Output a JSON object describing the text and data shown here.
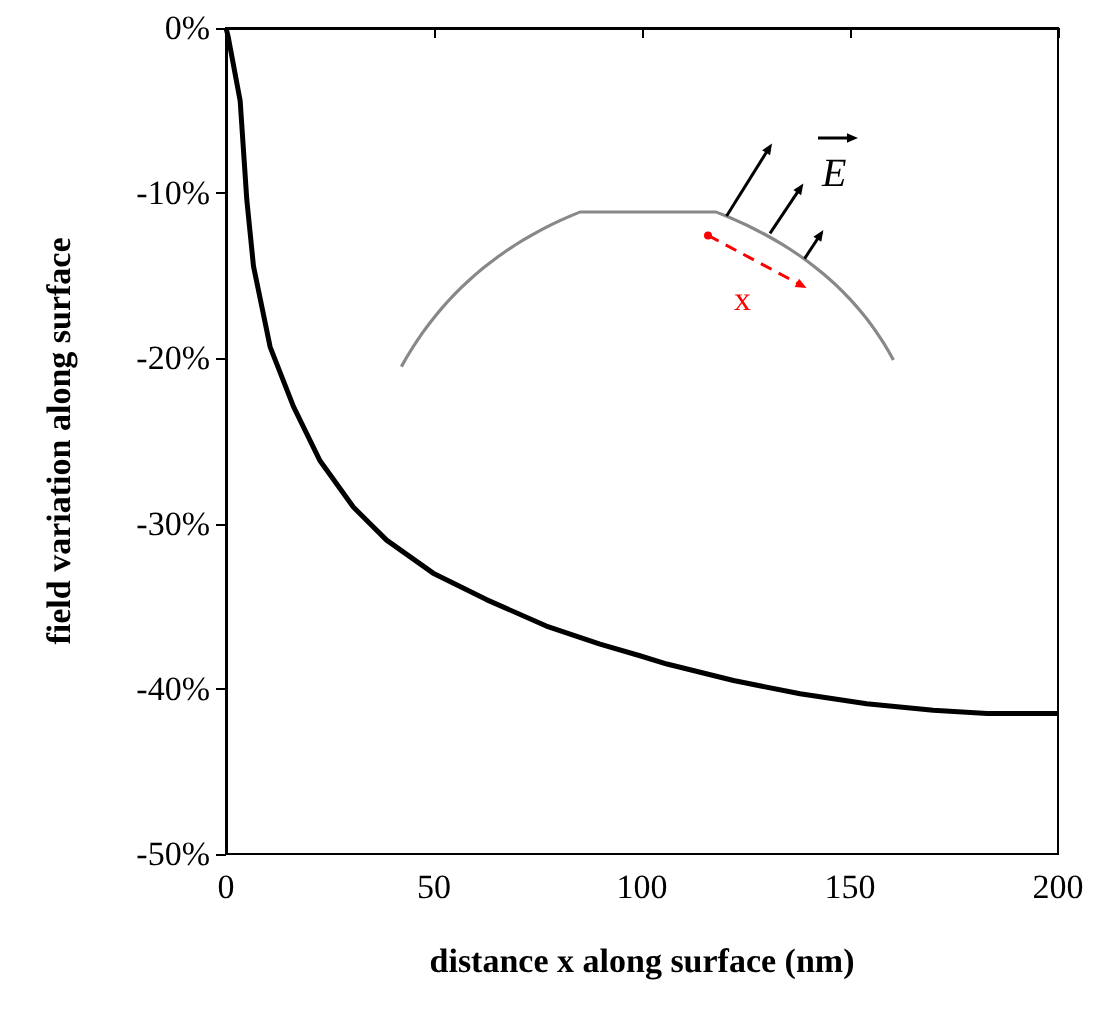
{
  "chart_data": {
    "type": "line",
    "xlabel": "distance x along surface (nm)",
    "ylabel": "field variation along surface",
    "x": [
      0,
      0.5,
      3.4,
      5,
      6.6,
      10.6,
      16.2,
      22.6,
      30.6,
      38.6,
      49.8,
      62.6,
      77,
      89.9,
      99.5,
      106,
      122,
      138,
      154,
      170,
      183,
      200
    ],
    "series": [
      {
        "color": "#000000",
        "values": [
          0,
          -0.5,
          -4.4,
          -10.4,
          -14.4,
          -19.3,
          -22.9,
          -26.2,
          -29,
          -31,
          -33,
          -34.6,
          -36.2,
          -37.3,
          -38,
          -38.5,
          -39.5,
          -40.3,
          -40.9,
          -41.3,
          -41.5,
          -41.5
        ]
      }
    ],
    "xlim": [
      0,
      200
    ],
    "xticks": [
      0,
      50,
      100,
      150,
      200
    ],
    "ylim": [
      -50,
      0
    ],
    "yticks": [
      {
        "value": -50,
        "label": "-50%"
      },
      {
        "value": -40,
        "label": "-40%"
      },
      {
        "value": -30,
        "label": "-30%"
      },
      {
        "value": -20,
        "label": "-20%"
      },
      {
        "value": -10,
        "label": "-10%"
      },
      {
        "value": 0,
        "label": "0%"
      }
    ],
    "annotations": [
      "E",
      "x"
    ],
    "grid": false,
    "marker": "none",
    "line_style": "solid"
  }
}
